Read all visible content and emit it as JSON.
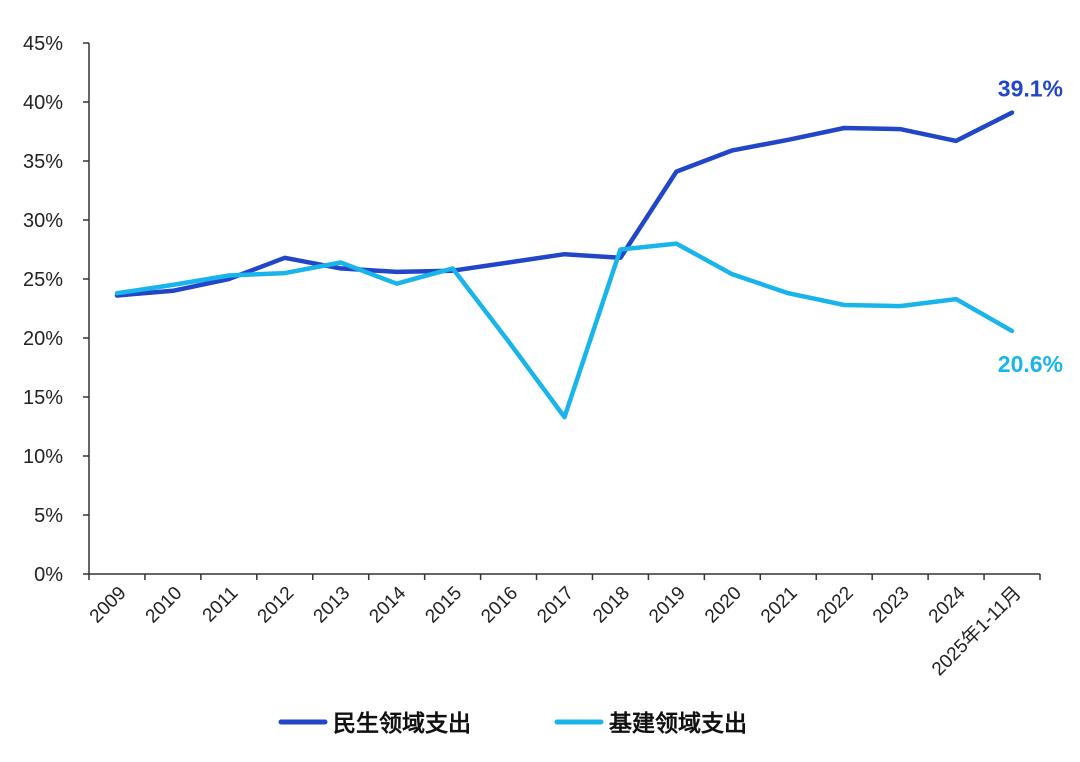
{
  "chart_data": {
    "type": "line",
    "categories": [
      "2009",
      "2010",
      "2011",
      "2012",
      "2013",
      "2014",
      "2015",
      "2016",
      "2017",
      "2018",
      "2019",
      "2020",
      "2021",
      "2022",
      "2023",
      "2024",
      "2025年1-11月"
    ],
    "series": [
      {
        "name": "民生领域支出",
        "color": "#2146c7",
        "values": [
          23.6,
          24.0,
          25.0,
          26.8,
          25.9,
          25.6,
          25.7,
          26.4,
          27.1,
          26.8,
          34.1,
          35.9,
          36.8,
          37.8,
          37.7,
          36.7,
          39.1
        ],
        "end_label": "39.1%"
      },
      {
        "name": "基建领域支出",
        "color": "#19b5ea",
        "values": [
          23.8,
          24.5,
          25.3,
          25.5,
          26.4,
          24.6,
          25.9,
          19.7,
          13.3,
          27.5,
          28.0,
          25.4,
          23.8,
          22.8,
          22.7,
          23.3,
          20.6
        ],
        "end_label": "20.6%"
      }
    ],
    "yticks": [
      "0%",
      "5%",
      "10%",
      "15%",
      "20%",
      "25%",
      "30%",
      "35%",
      "40%",
      "45%"
    ],
    "ylim": [
      0,
      45
    ],
    "grid": false,
    "legend_position": "bottom"
  }
}
